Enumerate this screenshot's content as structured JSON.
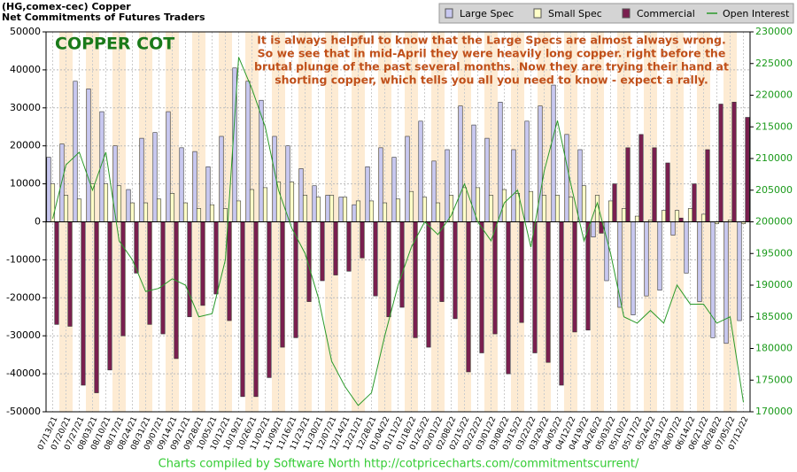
{
  "chart_data": {
    "type": "bar",
    "title": [
      "(HG,comex-cec) Copper",
      "Net Commitments of Futures Traders"
    ],
    "annotation_title": "COPPER COT",
    "annotation": [
      "It is always helpful to know that the Large Specs are almost always wrong.",
      "So we see that in mid-April they were heavily long copper. right before the",
      "brutal plunge of the past several months. Now they are trying their hand at",
      "shorting copper, which tells you all you need to know - expect a rally."
    ],
    "footer": "Charts compiled by Software North  http://cotpricecharts.com/commitmentscurrent/",
    "categories": [
      "07/13/21",
      "07/20/21",
      "07/27/21",
      "08/03/21",
      "08/10/21",
      "08/17/21",
      "08/24/21",
      "08/31/21",
      "09/07/21",
      "09/14/21",
      "09/21/21",
      "09/28/21",
      "10/05/21",
      "10/12/21",
      "10/19/21",
      "10/26/21",
      "11/02/21",
      "11/09/21",
      "11/16/21",
      "11/23/21",
      "11/30/21",
      "12/07/21",
      "12/14/21",
      "12/21/21",
      "12/28/21",
      "01/04/22",
      "01/11/22",
      "01/18/22",
      "01/25/22",
      "02/01/22",
      "02/08/22",
      "02/15/22",
      "02/22/22",
      "03/01/22",
      "03/08/22",
      "03/15/22",
      "03/22/22",
      "03/29/22",
      "04/05/22",
      "04/12/22",
      "04/19/22",
      "04/26/22",
      "05/03/22",
      "05/10/22",
      "05/17/22",
      "05/24/22",
      "05/31/22",
      "06/07/22",
      "06/14/22",
      "06/21/22",
      "06/28/22",
      "07/05/22",
      "07/12/22"
    ],
    "series": [
      {
        "name": "Large Spec",
        "color": "#c8c8f0",
        "values": [
          17000,
          20500,
          37000,
          35000,
          29000,
          20000,
          8500,
          22000,
          23500,
          29000,
          19500,
          18500,
          14500,
          22500,
          40500,
          37000,
          32000,
          22500,
          20000,
          14000,
          9500,
          7000,
          6500,
          4500,
          14500,
          19500,
          17000,
          22500,
          26500,
          16000,
          19000,
          30500,
          25500,
          22000,
          31500,
          19000,
          26500,
          30500,
          36000,
          23000,
          19000,
          -4000,
          -15500,
          -22500,
          -24500,
          -19500,
          -18000,
          -3500,
          -13500,
          -21000,
          -30500,
          -32000,
          -26000
        ]
      },
      {
        "name": "Small Spec",
        "color": "#ffffc8",
        "values": [
          10000,
          7000,
          6000,
          10000,
          10000,
          9500,
          5000,
          5000,
          6000,
          7500,
          5000,
          3500,
          4500,
          3500,
          5500,
          8500,
          9000,
          10500,
          10500,
          7000,
          6500,
          7000,
          6500,
          5500,
          5500,
          5000,
          6000,
          8000,
          6500,
          5000,
          7000,
          9000,
          9000,
          7000,
          8500,
          7500,
          8000,
          7000,
          7000,
          6500,
          9500,
          7000,
          5500,
          3500,
          1500,
          500,
          3000,
          3000,
          3500,
          2000,
          -500,
          500,
          -500
        ]
      },
      {
        "name": "Commercial",
        "color": "#7a1f4f",
        "values": [
          -27000,
          -27500,
          -43000,
          -45000,
          -39000,
          -30000,
          -13500,
          -27000,
          -29500,
          -36000,
          -25000,
          -22000,
          -19000,
          -26000,
          -46000,
          -46000,
          -41000,
          -33000,
          -30500,
          -21000,
          -15500,
          -14000,
          -13000,
          -9500,
          -19500,
          -25000,
          -22500,
          -30500,
          -33000,
          -21000,
          -25500,
          -39500,
          -34500,
          -29500,
          -40000,
          -26500,
          -34500,
          -37000,
          -43000,
          -29000,
          -28500,
          -3000,
          10000,
          19500,
          23000,
          19500,
          15500,
          1000,
          10000,
          19000,
          31000,
          31500,
          27500
        ]
      },
      {
        "name": "Open Interest",
        "color": "#2a9a2a",
        "axis": "y2",
        "type": "line",
        "values": [
          200500,
          209000,
          211000,
          205000,
          211000,
          197000,
          194000,
          189000,
          189500,
          191000,
          190000,
          185000,
          185500,
          194000,
          226000,
          221000,
          215000,
          205000,
          199000,
          195000,
          188000,
          178000,
          174000,
          171000,
          173000,
          182000,
          190000,
          196000,
          200000,
          198000,
          201000,
          206000,
          200000,
          197000,
          203000,
          205000,
          196000,
          208000,
          216000,
          206000,
          197000,
          203000,
          195000,
          185000,
          184000,
          186000,
          184000,
          190000,
          187000,
          187000,
          184000,
          185000,
          171500
        ]
      }
    ],
    "ylim": [
      -50000,
      50000
    ],
    "yticks": [
      -50000,
      -40000,
      -30000,
      -20000,
      -10000,
      0,
      10000,
      20000,
      30000,
      40000,
      50000
    ],
    "y2lim": [
      170000,
      230000
    ],
    "y2ticks": [
      170000,
      175000,
      180000,
      185000,
      190000,
      195000,
      200000,
      205000,
      210000,
      215000,
      220000,
      225000,
      230000
    ],
    "grid": true,
    "legend": "top-right"
  }
}
